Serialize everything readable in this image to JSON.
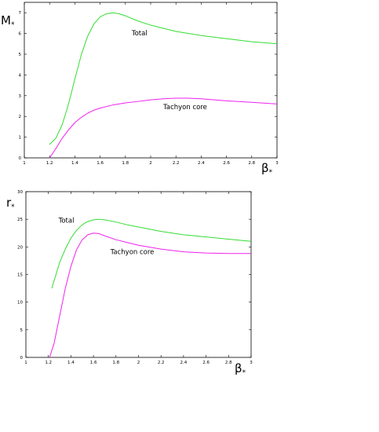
{
  "chart_data": [
    {
      "type": "line",
      "title": "",
      "xlabel": "β",
      "xlabel_sub": "*",
      "ylabel": "M",
      "ylabel_sub": "*",
      "xlim": [
        1,
        3
      ],
      "ylim": [
        0,
        7.5
      ],
      "xticks": [
        "1",
        "1.2",
        "1.4",
        "1.6",
        "1.8",
        "2",
        "2.2",
        "2.4",
        "2.6",
        "2.8",
        "3"
      ],
      "yticks": [
        "0",
        "1",
        "2",
        "3",
        "4",
        "5",
        "6",
        "7"
      ],
      "grid": false,
      "series": [
        {
          "name": "Total",
          "color": "#33dd33",
          "x": [
            1.2,
            1.25,
            1.3,
            1.35,
            1.4,
            1.45,
            1.5,
            1.55,
            1.6,
            1.65,
            1.7,
            1.75,
            1.8,
            1.9,
            2.0,
            2.2,
            2.4,
            2.6,
            2.8,
            3.0
          ],
          "y": [
            0.65,
            0.95,
            1.6,
            2.6,
            3.8,
            4.95,
            5.85,
            6.45,
            6.8,
            6.95,
            7.0,
            6.95,
            6.85,
            6.6,
            6.4,
            6.1,
            5.9,
            5.75,
            5.6,
            5.5
          ]
        },
        {
          "name": "Tachyon core",
          "color": "#ee22ee",
          "x": [
            1.2,
            1.25,
            1.3,
            1.35,
            1.4,
            1.45,
            1.5,
            1.55,
            1.6,
            1.7,
            1.8,
            1.9,
            2.0,
            2.1,
            2.2,
            2.3,
            2.4,
            2.6,
            2.8,
            3.0
          ],
          "y": [
            0.0,
            0.45,
            0.95,
            1.35,
            1.7,
            1.95,
            2.15,
            2.3,
            2.4,
            2.55,
            2.65,
            2.72,
            2.8,
            2.85,
            2.88,
            2.88,
            2.85,
            2.75,
            2.68,
            2.6
          ]
        }
      ],
      "annotations": [
        {
          "text": "Total",
          "x": 1.85,
          "y": 5.9
        },
        {
          "text": "Tachyon core",
          "x": 2.1,
          "y": 2.35
        }
      ]
    },
    {
      "type": "line",
      "title": "",
      "xlabel": "β",
      "xlabel_sub": "*",
      "ylabel": "r",
      "ylabel_sub": "*",
      "xlim": [
        1,
        3
      ],
      "ylim": [
        0,
        30
      ],
      "xticks": [
        "1",
        "1.2",
        "1.4",
        "1.6",
        "1.8",
        "2",
        "2.2",
        "2.4",
        "2.6",
        "2.8",
        "3"
      ],
      "yticks": [
        "0",
        "5",
        "10",
        "15",
        "20",
        "25",
        "30"
      ],
      "grid": false,
      "series": [
        {
          "name": "Total",
          "color": "#33dd33",
          "x": [
            1.23,
            1.3,
            1.35,
            1.4,
            1.45,
            1.5,
            1.55,
            1.6,
            1.65,
            1.7,
            1.8,
            1.9,
            2.0,
            2.2,
            2.4,
            2.6,
            2.8,
            3.0
          ],
          "y": [
            12.5,
            17.2,
            19.6,
            21.6,
            23.0,
            24.0,
            24.6,
            24.9,
            25.0,
            24.9,
            24.5,
            24.0,
            23.6,
            22.8,
            22.2,
            21.8,
            21.4,
            21.0
          ]
        },
        {
          "name": "Tachyon core",
          "color": "#ee22ee",
          "x": [
            1.21,
            1.25,
            1.3,
            1.35,
            1.4,
            1.45,
            1.5,
            1.55,
            1.6,
            1.65,
            1.7,
            1.8,
            1.9,
            2.0,
            2.2,
            2.4,
            2.6,
            2.8,
            3.0
          ],
          "y": [
            0.0,
            2.5,
            7.5,
            12.5,
            16.5,
            19.5,
            21.3,
            22.2,
            22.5,
            22.4,
            22.0,
            21.3,
            20.8,
            20.3,
            19.6,
            19.1,
            18.9,
            18.8,
            18.8
          ]
        }
      ],
      "annotations": [
        {
          "text": "Total",
          "x": 1.29,
          "y": 24.4
        },
        {
          "text": "Tachyon core",
          "x": 1.75,
          "y": 18.7
        }
      ]
    }
  ]
}
